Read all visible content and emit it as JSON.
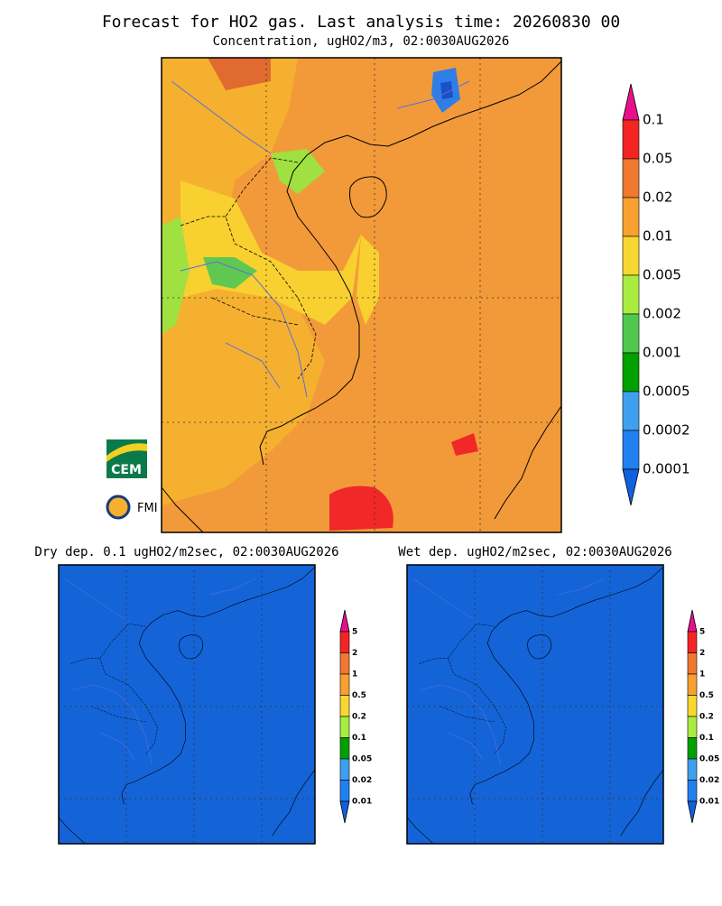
{
  "header": {
    "title": "Forecast for HO2 gas. Last analysis time: 20260830 00"
  },
  "main_panel": {
    "subtitle": "Concentration, ugHO2/m3, 02:0030AUG2026",
    "colorbar": [
      "0.1",
      "0.05",
      "0.02",
      "0.01",
      "0.005",
      "0.002",
      "0.001",
      "0.0005",
      "0.0002",
      "0.0001"
    ]
  },
  "logos": [
    "CEM",
    "FMI"
  ],
  "dry_panel": {
    "title": "Dry dep. 0.1 ugHO2/m2sec, 02:0030AUG2026",
    "colorbar": [
      "5",
      "2",
      "1",
      "0.5",
      "0.2",
      "0.1",
      "0.05",
      "0.02",
      "0.01"
    ]
  },
  "wet_panel": {
    "title": "Wet dep. ugHO2/m2sec, 02:0030AUG2026",
    "colorbar": [
      "5",
      "2",
      "1",
      "0.5",
      "0.2",
      "0.1",
      "0.05",
      "0.02",
      "0.01"
    ]
  }
}
